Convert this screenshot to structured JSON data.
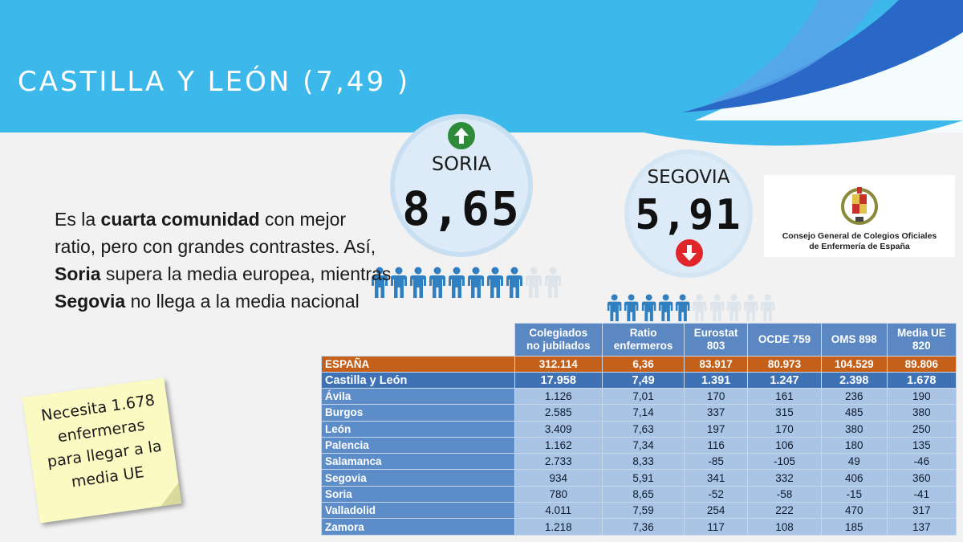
{
  "header": {
    "title": "CASTILLA Y LEÓN (7,49 )"
  },
  "highlights": {
    "high": {
      "name": "SORIA",
      "value": "8,65",
      "trend_icon": "arrow-up-icon",
      "trend_color": "#2e8b3a"
    },
    "low": {
      "name": "SEGOVIA",
      "value": "5,91",
      "trend_icon": "arrow-down-icon",
      "trend_color": "#e0262b"
    }
  },
  "people": {
    "soria": {
      "filled": 8,
      "total": 10
    },
    "segovia": {
      "filled": 5,
      "total": 10
    },
    "filled_color": "#2f7fc1",
    "empty_color": "#dde4ea"
  },
  "description": {
    "p1": "Es la ",
    "b1": "cuarta comunidad",
    "p2": " con mejor ratio, pero con grandes contrastes. Así, ",
    "b2": "Soria",
    "p3": " supera la media europea, mientras ",
    "b3": "Segovia",
    "p4": " no llega a la media nacional"
  },
  "logo": {
    "line1": "Consejo General de Colegios Oficiales",
    "line2": "de Enfermería de España"
  },
  "note": {
    "text": "Necesita 1.678 enfermeras para llegar a la media UE"
  },
  "table": {
    "headers": [
      {
        "l1": "Colegiados",
        "l2": "no jubilados"
      },
      {
        "l1": "Ratio",
        "l2": "enfermeros"
      },
      {
        "l1": "Eurostat",
        "l2": "803"
      },
      {
        "l1": "OCDE 759",
        "l2": ""
      },
      {
        "l1": "OMS 898",
        "l2": ""
      },
      {
        "l1": "Media UE",
        "l2": "820"
      }
    ],
    "rows": [
      {
        "name": "ESPAÑA",
        "values": [
          "312.114",
          "6,36",
          "83.917",
          "80.973",
          "104.529",
          "89.806"
        ]
      },
      {
        "name": "Castilla y León",
        "values": [
          "17.958",
          "7,49",
          "1.391",
          "1.247",
          "2.398",
          "1.678"
        ]
      },
      {
        "name": "Ávila",
        "values": [
          "1.126",
          "7,01",
          "170",
          "161",
          "236",
          "190"
        ]
      },
      {
        "name": "Burgos",
        "values": [
          "2.585",
          "7,14",
          "337",
          "315",
          "485",
          "380"
        ]
      },
      {
        "name": "León",
        "values": [
          "3.409",
          "7,63",
          "197",
          "170",
          "380",
          "250"
        ]
      },
      {
        "name": "Palencia",
        "values": [
          "1.162",
          "7,34",
          "116",
          "106",
          "180",
          "135"
        ]
      },
      {
        "name": "Salamanca",
        "values": [
          "2.733",
          "8,33",
          "-85",
          "-105",
          "49",
          "-46"
        ]
      },
      {
        "name": "Segovia",
        "values": [
          "934",
          "5,91",
          "341",
          "332",
          "406",
          "360"
        ]
      },
      {
        "name": "Soria",
        "values": [
          "780",
          "8,65",
          "-52",
          "-58",
          "-15",
          "-41"
        ]
      },
      {
        "name": "Valladolid",
        "values": [
          "4.011",
          "7,59",
          "254",
          "222",
          "470",
          "317"
        ]
      },
      {
        "name": "Zamora",
        "values": [
          "1.218",
          "7,36",
          "117",
          "108",
          "185",
          "137"
        ]
      }
    ]
  }
}
